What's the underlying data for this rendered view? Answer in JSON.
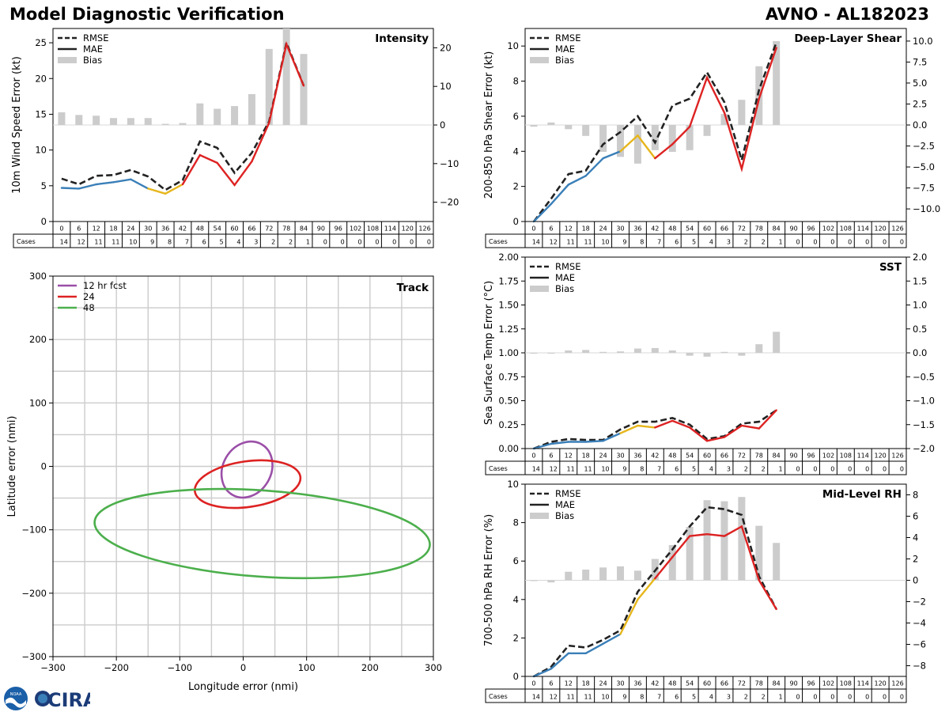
{
  "header": {
    "title_left": "Model Diagnostic Verification",
    "title_right": "AVNO - AL182023"
  },
  "logos": {
    "noaa": "NOAA",
    "cira": "CIRA"
  },
  "colors": {
    "rmse": "#222222",
    "mae_early": "#3a7fb8",
    "mae_mid": "#e6b61c",
    "mae_late": "#dd2222",
    "bias": "#cccccc",
    "ell12": "#9b4fa8",
    "ell24": "#dd2222",
    "ell48": "#4caf4c",
    "grid": "#cccccc"
  },
  "chart_data": [
    {
      "id": "intensity",
      "type": "line",
      "title": "Intensity",
      "ylabel": "10m Wind Speed Error (kt)",
      "ylim": [
        0,
        27
      ],
      "yticks": [
        "0",
        "5",
        "10",
        "15",
        "20",
        "25"
      ],
      "y2lim": [
        -25,
        25
      ],
      "y2ticks": [
        "−20",
        "−10",
        "0",
        "10",
        "20"
      ],
      "legend": [
        "RMSE",
        "MAE",
        "Bias"
      ],
      "rmse": [
        6.0,
        5.2,
        6.4,
        6.5,
        7.2,
        6.3,
        4.4,
        5.8,
        11.2,
        10.3,
        6.8,
        9.6,
        14.0,
        25.0,
        19.0
      ],
      "mae": [
        4.7,
        4.6,
        5.2,
        5.5,
        5.9,
        4.6,
        3.9,
        5.2,
        9.3,
        8.2,
        5.1,
        8.4,
        13.8,
        24.8,
        19.0
      ],
      "bias": [
        3.3,
        2.6,
        2.4,
        1.8,
        1.8,
        1.8,
        0.3,
        0.5,
        5.6,
        4.2,
        4.9,
        8.0,
        19.7,
        25.0,
        18.4
      ]
    },
    {
      "id": "shear",
      "type": "line",
      "title": "Deep-Layer Shear",
      "ylabel": "200-850 hPa Shear Error (kt)",
      "ylim": [
        0,
        11
      ],
      "yticks": [
        "0",
        "2",
        "4",
        "6",
        "8",
        "10"
      ],
      "y2lim": [
        -11.5,
        11.5
      ],
      "y2ticks": [
        "−10.0",
        "−7.5",
        "−5.0",
        "−2.5",
        "0.0",
        "2.5",
        "5.0",
        "7.5",
        "10.0"
      ],
      "legend": [
        "RMSE",
        "MAE",
        "Bias"
      ],
      "rmse": [
        0.0,
        1.3,
        2.7,
        2.9,
        4.4,
        5.1,
        6.0,
        4.5,
        6.6,
        7.0,
        8.5,
        6.8,
        3.5,
        7.5,
        10.2
      ],
      "mae": [
        0.0,
        1.0,
        2.1,
        2.6,
        3.6,
        4.0,
        4.9,
        3.6,
        4.4,
        5.4,
        8.2,
        6.2,
        3.0,
        7.0,
        9.9
      ],
      "bias": [
        -0.2,
        0.3,
        -0.5,
        -1.3,
        -3.2,
        -3.8,
        -4.6,
        -3.0,
        -3.2,
        -3.0,
        -1.3,
        1.3,
        3.0,
        7.0,
        10.0
      ]
    },
    {
      "id": "sst",
      "type": "line",
      "title": "SST",
      "ylabel": "Sea Surface Temp Error (°C)",
      "ylim": [
        0,
        2
      ],
      "yticks": [
        "0.00",
        "0.25",
        "0.50",
        "0.75",
        "1.00",
        "1.25",
        "1.50",
        "1.75",
        "2.00"
      ],
      "y2lim": [
        -2,
        2
      ],
      "y2ticks": [
        "−2.0",
        "−1.5",
        "−1.0",
        "−0.5",
        "0.0",
        "0.5",
        "1.0",
        "1.5",
        "2.0"
      ],
      "legend": [
        "RMSE",
        "MAE",
        "Bias"
      ],
      "rmse": [
        0.0,
        0.07,
        0.1,
        0.09,
        0.09,
        0.2,
        0.28,
        0.28,
        0.32,
        0.25,
        0.1,
        0.13,
        0.26,
        0.28,
        0.4
      ],
      "mae": [
        0.0,
        0.05,
        0.07,
        0.07,
        0.08,
        0.16,
        0.24,
        0.22,
        0.29,
        0.22,
        0.08,
        0.12,
        0.24,
        0.21,
        0.4
      ],
      "bias": [
        0.0,
        -0.01,
        0.05,
        0.06,
        0.02,
        0.03,
        0.09,
        0.1,
        0.05,
        -0.06,
        -0.08,
        0.02,
        -0.06,
        0.18,
        0.44
      ]
    },
    {
      "id": "rh",
      "type": "line",
      "title": "Mid-Level RH",
      "ylabel": "700-500 hPa RH Error (%)",
      "ylim": [
        0,
        10
      ],
      "yticks": [
        "0",
        "2",
        "4",
        "6",
        "8",
        "10"
      ],
      "y2lim": [
        -9,
        9
      ],
      "y2ticks": [
        "−8",
        "−6",
        "−4",
        "−2",
        "0",
        "2",
        "4",
        "6",
        "8"
      ],
      "legend": [
        "RMSE",
        "MAE",
        "Bias"
      ],
      "rmse": [
        0.0,
        0.5,
        1.6,
        1.5,
        1.9,
        2.4,
        4.4,
        5.5,
        6.6,
        7.8,
        8.8,
        8.7,
        8.4,
        5.2,
        3.5
      ],
      "mae": [
        0.0,
        0.4,
        1.2,
        1.2,
        1.7,
        2.2,
        4.0,
        5.1,
        6.2,
        7.3,
        7.4,
        7.3,
        7.8,
        5.0,
        3.5
      ],
      "bias": [
        0.0,
        -0.2,
        0.8,
        1.0,
        1.2,
        1.3,
        0.9,
        2.0,
        3.3,
        5.0,
        7.5,
        7.4,
        7.8,
        5.1,
        3.5
      ]
    },
    {
      "id": "track",
      "type": "scatter",
      "title": "Track",
      "xlabel": "Longitude error (nmi)",
      "ylabel": "Latitude error (nmi)",
      "xlim": [
        -300,
        300
      ],
      "ylim": [
        -300,
        300
      ],
      "xticks": [
        "−300",
        "−200",
        "−100",
        "0",
        "100",
        "200",
        "300"
      ],
      "yticks": [
        "−300",
        "−200",
        "−100",
        "0",
        "100",
        "200",
        "300"
      ],
      "legend": [
        "12 hr fcst",
        "24",
        "48"
      ],
      "ellipses": [
        {
          "name": "12 hr fcst",
          "cx": 6,
          "cy": -5,
          "a": 46,
          "b": 38,
          "angle": -60
        },
        {
          "name": "24",
          "cx": 7,
          "cy": -28,
          "a": 84,
          "b": 36,
          "angle": -8
        },
        {
          "name": "48",
          "cx": 30,
          "cy": -106,
          "a": 265,
          "b": 68,
          "angle": 4
        }
      ]
    }
  ],
  "cases_table": {
    "label": "Cases",
    "hours": [
      "0",
      "6",
      "12",
      "18",
      "24",
      "30",
      "36",
      "42",
      "48",
      "54",
      "60",
      "66",
      "72",
      "78",
      "84",
      "90",
      "96",
      "102",
      "108",
      "114",
      "120",
      "126"
    ],
    "counts": [
      "14",
      "12",
      "11",
      "11",
      "10",
      "9",
      "8",
      "7",
      "6",
      "5",
      "4",
      "3",
      "2",
      "2",
      "1",
      "0",
      "0",
      "0",
      "0",
      "0",
      "0",
      "0"
    ]
  }
}
